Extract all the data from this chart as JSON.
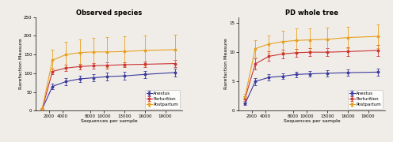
{
  "title_left": "Observed species",
  "title_right": "PD whole tree",
  "xlabel": "Sequences per sample",
  "ylabel": "Rarefaction Measure",
  "xticks": [
    2000,
    4000,
    8000,
    10000,
    13000,
    16000,
    19000
  ],
  "x_values": [
    1000,
    2500,
    4500,
    6500,
    8500,
    10500,
    13000,
    16000,
    20500
  ],
  "obs_anestus_y": [
    5,
    65,
    78,
    85,
    88,
    91,
    93,
    97,
    102
  ],
  "obs_anestus_err": [
    1,
    8,
    9,
    9,
    10,
    10,
    10,
    10,
    11
  ],
  "obs_parturition_y": [
    5,
    105,
    114,
    118,
    120,
    121,
    123,
    124,
    126
  ],
  "obs_parturition_err": [
    1,
    8,
    8,
    8,
    8,
    8,
    7,
    7,
    9
  ],
  "obs_postpartum_y": [
    5,
    135,
    150,
    155,
    157,
    157,
    158,
    161,
    163
  ],
  "obs_postpartum_err": [
    1,
    28,
    33,
    36,
    38,
    40,
    40,
    40,
    40
  ],
  "pd_anestus_y": [
    1.2,
    5.0,
    5.7,
    5.9,
    6.2,
    6.3,
    6.4,
    6.5,
    6.6
  ],
  "pd_anestus_err": [
    0.2,
    0.6,
    0.5,
    0.5,
    0.5,
    0.5,
    0.5,
    0.5,
    0.6
  ],
  "pd_parturition_y": [
    2.1,
    8.0,
    9.3,
    9.7,
    9.9,
    10.0,
    10.0,
    10.1,
    10.3
  ],
  "pd_parturition_err": [
    0.4,
    0.9,
    0.8,
    0.7,
    0.7,
    0.7,
    0.7,
    0.7,
    0.9
  ],
  "pd_postpartum_y": [
    2.4,
    10.6,
    11.4,
    11.8,
    12.0,
    12.1,
    12.2,
    12.5,
    12.7
  ],
  "pd_postpartum_err": [
    0.5,
    1.4,
    1.5,
    1.8,
    2.0,
    2.0,
    2.0,
    1.8,
    2.0
  ],
  "color_anestus": "#3a3a9f",
  "color_parturition": "#cc3333",
  "color_postpartum": "#e8a020",
  "obs_ylim": [
    0,
    250
  ],
  "obs_yticks": [
    0,
    50,
    100,
    150,
    200,
    250
  ],
  "pd_ylim": [
    0,
    16
  ],
  "pd_yticks": [
    0,
    5,
    10,
    15
  ],
  "legend_labels": [
    "Anestus",
    "Parturition",
    "Postpartum"
  ],
  "bg_color": "#f0ede8"
}
